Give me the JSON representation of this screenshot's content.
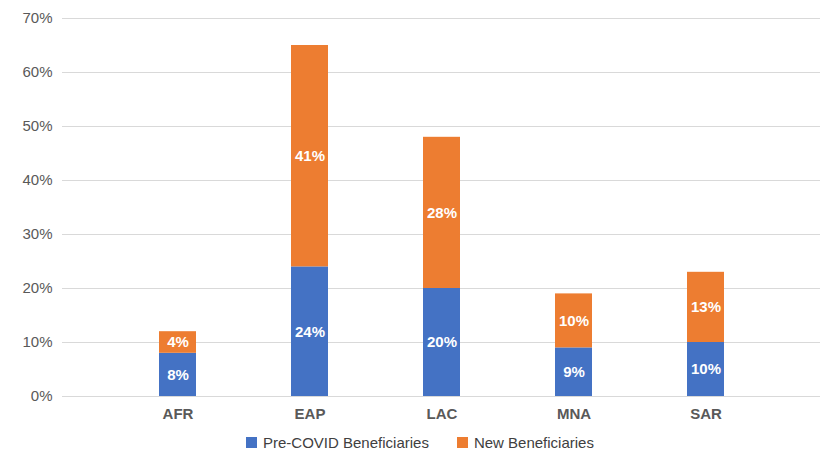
{
  "chart_data": {
    "type": "bar",
    "stacked": true,
    "grid": true,
    "data_labels": true,
    "legend": "bottom",
    "categories": [
      "AFR",
      "EAP",
      "LAC",
      "MNA",
      "SAR"
    ],
    "series": [
      {
        "name": "Pre-COVID Beneficiaries",
        "color": "#4472c4",
        "values": [
          8,
          24,
          20,
          9,
          10
        ],
        "value_labels": [
          "8%",
          "24%",
          "20%",
          "9%",
          "10%"
        ]
      },
      {
        "name": "New Beneficiaries",
        "color": "#ed7d31",
        "values": [
          4,
          41,
          28,
          10,
          13
        ],
        "value_labels": [
          "4%",
          "41%",
          "28%",
          "10%",
          "13%"
        ]
      }
    ],
    "ylim": [
      0,
      70
    ],
    "yticks": [
      {
        "value": 0,
        "label": "0%"
      },
      {
        "value": 10,
        "label": "10%"
      },
      {
        "value": 20,
        "label": "20%"
      },
      {
        "value": 30,
        "label": "30%"
      },
      {
        "value": 40,
        "label": "40%"
      },
      {
        "value": 50,
        "label": "50%"
      },
      {
        "value": 60,
        "label": "60%"
      },
      {
        "value": 70,
        "label": "70%"
      }
    ]
  }
}
